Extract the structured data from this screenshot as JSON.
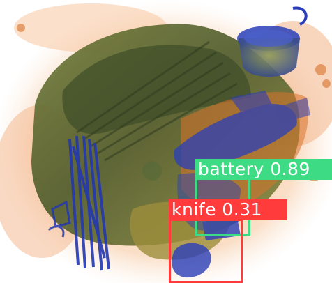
{
  "detections": [
    {
      "label": "battery",
      "confidence": "0.89",
      "color": "#3ddc84"
    },
    {
      "label": "knife",
      "confidence": "0.31",
      "color": "#ff3b3b"
    }
  ],
  "scan_colors": {
    "background": "#ffffff",
    "organic_halo": "#f0a66a",
    "organic_dense": "#d9732b",
    "mixed_green": "#7f8c3a",
    "mixed_dark": "#4a5a2a",
    "metal_blue": "#2a3fb8"
  }
}
